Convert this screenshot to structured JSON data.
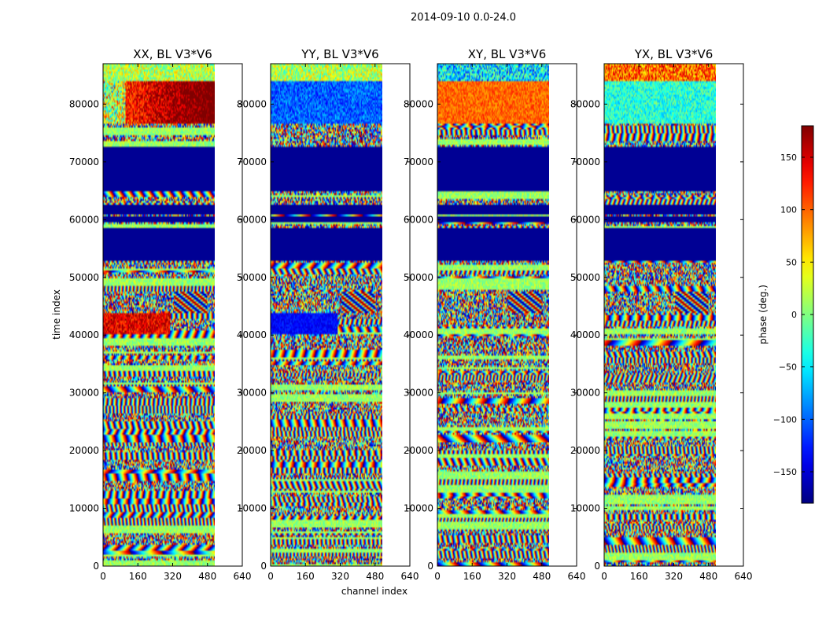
{
  "chart_data": {
    "type": "heatmap",
    "suptitle": "2014-09-10 0.0-24.0",
    "ylabel": "time index",
    "xlabel": "channel index",
    "xlim": [
      0,
      640
    ],
    "ylim": [
      0,
      87000
    ],
    "data_channel_max": 512,
    "xticks": [
      0,
      160,
      320,
      480,
      640
    ],
    "yticks": [
      0,
      10000,
      20000,
      30000,
      40000,
      50000,
      60000,
      70000,
      80000
    ],
    "panels": [
      {
        "title": "XX, BL V3*V6",
        "seed": 11,
        "top_style": "redwarm",
        "feature": "red"
      },
      {
        "title": "YY, BL V3*V6",
        "seed": 23,
        "top_style": "blue",
        "feature": "blue"
      },
      {
        "title": "XY, BL V3*V6",
        "seed": 37,
        "top_style": "orange",
        "feature": "noise"
      },
      {
        "title": "YX, BL V3*V6",
        "seed": 53,
        "top_style": "cyan",
        "feature": "noise"
      }
    ],
    "blank_bands": [
      [
        53000,
        58500
      ],
      [
        59500,
        60500
      ],
      [
        61000,
        62500
      ],
      [
        65000,
        72500
      ]
    ],
    "colorbar": {
      "label": "phase (deg.)",
      "range": [
        -180,
        180
      ],
      "ticks": [
        -150,
        -100,
        -50,
        0,
        50,
        100,
        150
      ],
      "tick_labels": [
        "−150",
        "−100",
        "−50",
        "0",
        "50",
        "100",
        "150"
      ],
      "colormap": "jet"
    }
  }
}
